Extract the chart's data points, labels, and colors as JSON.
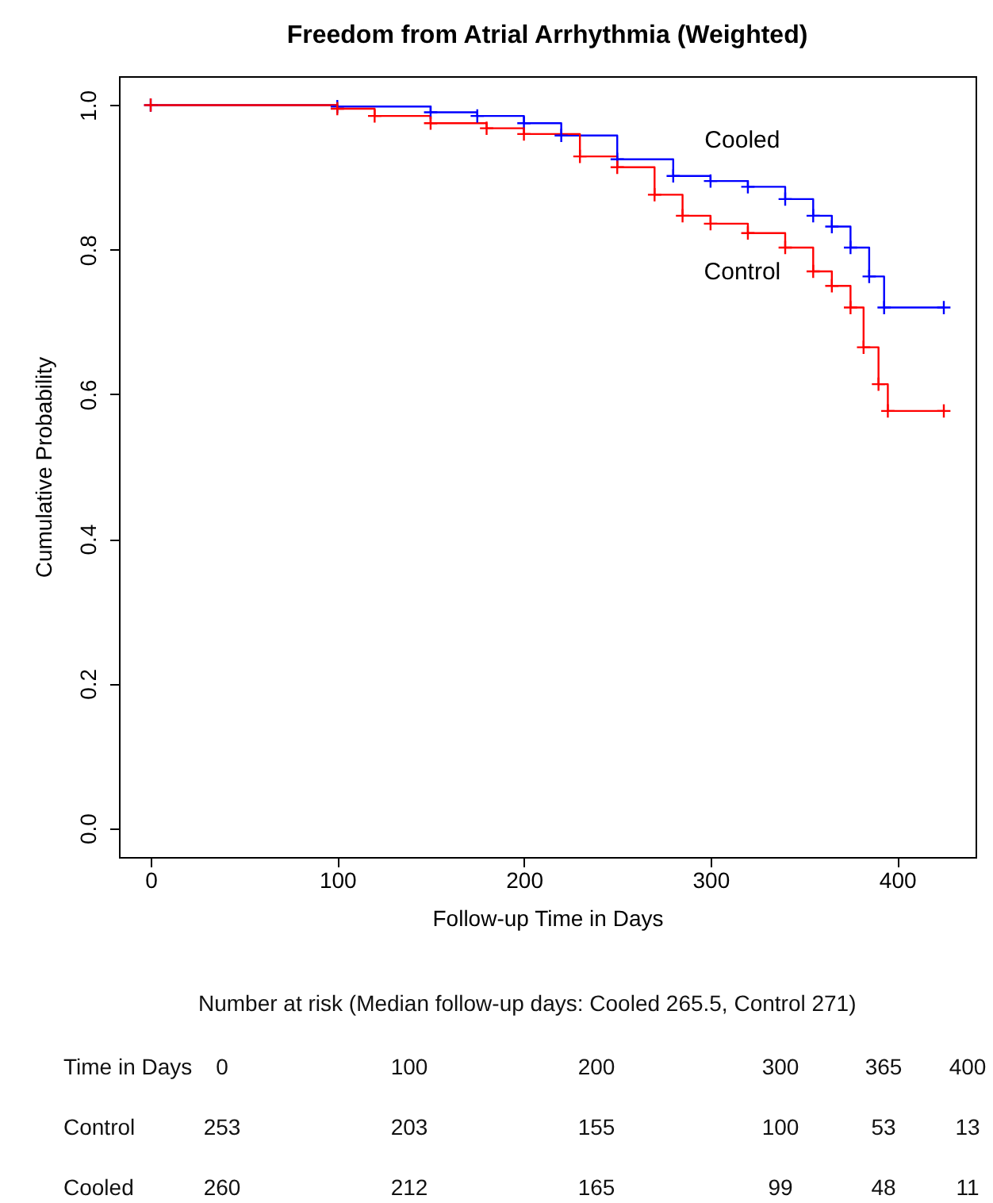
{
  "chart_data": {
    "type": "step",
    "title": "Freedom from Atrial Arrhythmia (Weighted)",
    "xlabel": "Follow-up Time in Days",
    "ylabel": "Cumulative Probability",
    "xlim": [
      -17,
      442
    ],
    "ylim": [
      -0.04,
      1.04
    ],
    "xticks": [
      0,
      100,
      200,
      300,
      400
    ],
    "yticks": [
      {
        "value": 0,
        "label": "0.0"
      },
      {
        "value": 0.2,
        "label": "0.2"
      },
      {
        "value": 0.4,
        "label": "0.4"
      },
      {
        "value": 0.6,
        "label": "0.6"
      },
      {
        "value": 0.8,
        "label": "0.8"
      },
      {
        "value": 1,
        "label": "1.0"
      }
    ],
    "grid": false,
    "legend": false,
    "marker": "cross",
    "line_style": "solid",
    "series": [
      {
        "name": "Cooled",
        "color": "#0000ff",
        "x": [
          0,
          100,
          150,
          175,
          200,
          220,
          250,
          280,
          300,
          320,
          340,
          355,
          365,
          375,
          385,
          393,
          425
        ],
        "values": [
          1.0,
          0.998,
          0.99,
          0.985,
          0.975,
          0.958,
          0.925,
          0.902,
          0.895,
          0.887,
          0.87,
          0.847,
          0.832,
          0.803,
          0.763,
          0.72,
          0.72
        ]
      },
      {
        "name": "Control",
        "color": "#ff0000",
        "x": [
          0,
          100,
          120,
          150,
          180,
          200,
          230,
          250,
          270,
          285,
          300,
          320,
          340,
          355,
          365,
          375,
          382,
          390,
          395,
          425
        ],
        "values": [
          1.0,
          0.995,
          0.985,
          0.975,
          0.968,
          0.96,
          0.929,
          0.914,
          0.876,
          0.847,
          0.836,
          0.823,
          0.803,
          0.77,
          0.75,
          0.72,
          0.665,
          0.614,
          0.577,
          0.577
        ]
      }
    ],
    "annotations": [
      "Number at risk  (Median follow-up days: Cooled 265.5, Control 271)",
      "Time in Days",
      "0",
      "100",
      "200",
      "300",
      "365",
      "400",
      "Control",
      "253",
      "203",
      "155",
      "100",
      "53",
      "13",
      "Cooled",
      "260",
      "212",
      "165",
      "99",
      "48",
      "11"
    ]
  }
}
